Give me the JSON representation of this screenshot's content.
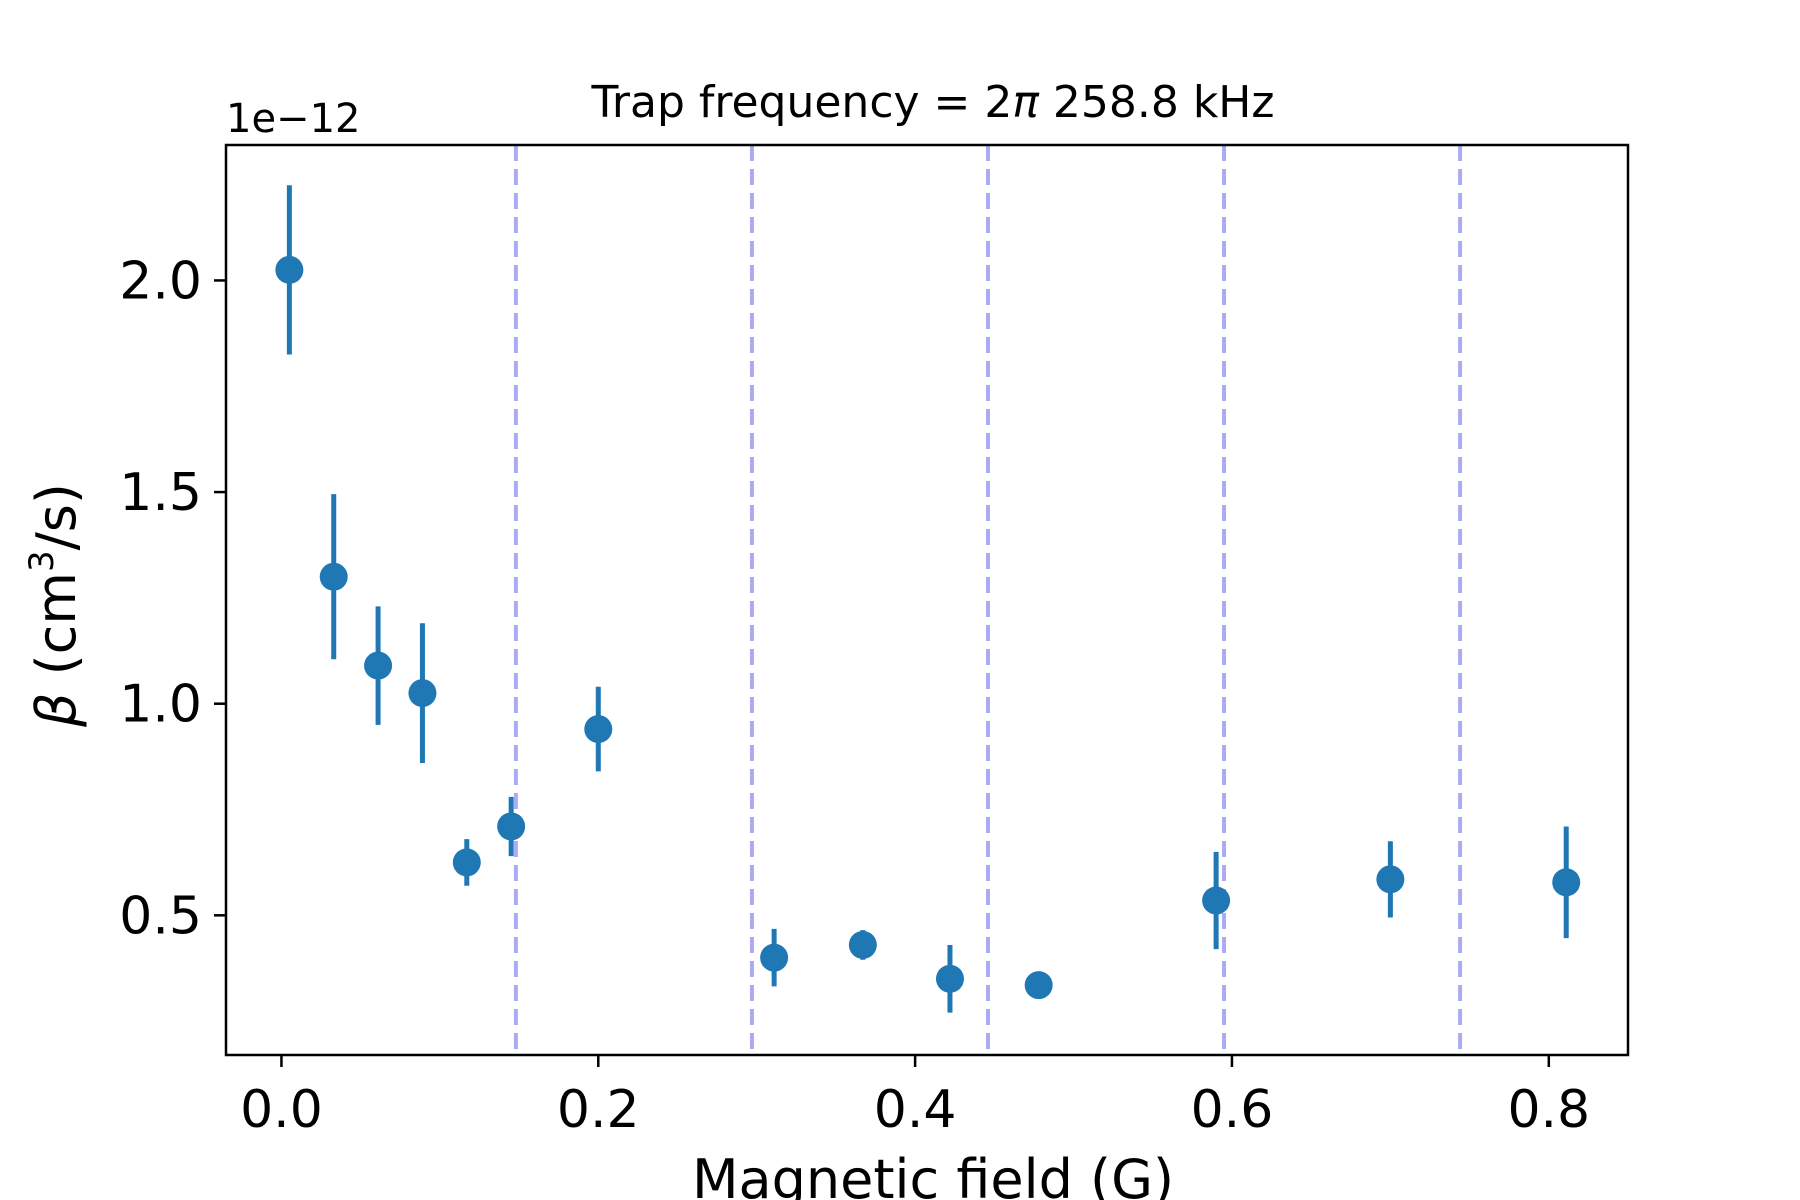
{
  "chart_data": {
    "type": "scatter",
    "title_text": "Trap frequency = 2",
    "title_symbol": "π",
    "title_rest": " 258.8 kHz",
    "xlabel": "Magnetic field (G)",
    "ylabel_symbol": "β",
    "ylabel_text": " (cm",
    "ylabel_sup": "3",
    "ylabel_end": "/s)",
    "y_offset_label": "1e−12",
    "xlim": [
      -0.035,
      0.85
    ],
    "ylim": [
      0.17,
      2.32
    ],
    "xticks": [
      0.0,
      0.2,
      0.4,
      0.6,
      0.8
    ],
    "xtick_labels": [
      "0.0",
      "0.2",
      "0.4",
      "0.6",
      "0.8"
    ],
    "yticks": [
      0.5,
      1.0,
      1.5,
      2.0
    ],
    "ytick_labels": [
      "0.5",
      "1.0",
      "1.5",
      "2.0"
    ],
    "grid": false,
    "point_color": "#1f77b4",
    "vline_color": "#aaaaf5",
    "vlines": [
      0.148,
      0.297,
      0.446,
      0.595,
      0.744
    ],
    "series": [
      {
        "points": [
          {
            "x": 0.005,
            "y": 2.025,
            "err": 0.2
          },
          {
            "x": 0.033,
            "y": 1.3,
            "err": 0.195
          },
          {
            "x": 0.061,
            "y": 1.09,
            "err": 0.14
          },
          {
            "x": 0.089,
            "y": 1.025,
            "err": 0.165
          },
          {
            "x": 0.117,
            "y": 0.625,
            "err": 0.055
          },
          {
            "x": 0.145,
            "y": 0.71,
            "err": 0.07
          },
          {
            "x": 0.2,
            "y": 0.94,
            "err": 0.1
          },
          {
            "x": 0.311,
            "y": 0.4,
            "err": 0.068
          },
          {
            "x": 0.367,
            "y": 0.43,
            "err": 0.035
          },
          {
            "x": 0.422,
            "y": 0.35,
            "err": 0.08
          },
          {
            "x": 0.478,
            "y": 0.335,
            "err": 0.01
          },
          {
            "x": 0.59,
            "y": 0.535,
            "err": 0.115
          },
          {
            "x": 0.7,
            "y": 0.585,
            "err": 0.09
          },
          {
            "x": 0.811,
            "y": 0.578,
            "err": 0.132
          }
        ]
      }
    ]
  }
}
